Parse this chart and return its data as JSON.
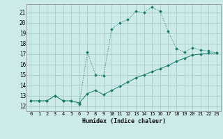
{
  "title": "",
  "xlabel": "Humidex (Indice chaleur)",
  "bg_color": "#cceae8",
  "grid_color": "#aacccc",
  "line_color": "#1a7a6a",
  "xlim": [
    -0.5,
    23.5
  ],
  "ylim": [
    11.5,
    21.8
  ],
  "yticks": [
    12,
    13,
    14,
    15,
    16,
    17,
    18,
    19,
    20,
    21
  ],
  "xtick_labels": [
    "0",
    "1",
    "2",
    "3",
    "4",
    "5",
    "6",
    "7",
    "8",
    "9",
    "10",
    "11",
    "12",
    "13",
    "14",
    "15",
    "16",
    "17",
    "18",
    "19",
    "20",
    "21",
    "22",
    "23"
  ],
  "curve1_x": [
    0,
    1,
    2,
    3,
    4,
    5,
    6,
    7,
    8,
    9,
    10,
    11,
    12,
    13,
    14,
    15,
    16,
    17,
    18,
    19,
    20,
    21,
    22,
    23
  ],
  "curve1_y": [
    12.5,
    12.5,
    12.5,
    13.0,
    12.5,
    12.5,
    12.2,
    17.2,
    15.0,
    14.9,
    19.4,
    20.0,
    20.3,
    21.1,
    21.0,
    21.5,
    21.1,
    19.2,
    17.5,
    17.2,
    17.6,
    17.4,
    17.3,
    17.1
  ],
  "curve2_x": [
    0,
    1,
    2,
    3,
    4,
    5,
    6,
    7,
    8,
    9,
    10,
    11,
    12,
    13,
    14,
    15,
    16,
    17,
    18,
    19,
    20,
    21,
    22,
    23
  ],
  "curve2_y": [
    12.5,
    12.5,
    12.5,
    13.0,
    12.5,
    12.5,
    12.3,
    13.2,
    13.5,
    13.1,
    13.5,
    13.9,
    14.3,
    14.7,
    15.0,
    15.3,
    15.6,
    15.9,
    16.3,
    16.6,
    16.9,
    17.0,
    17.1,
    17.1
  ]
}
